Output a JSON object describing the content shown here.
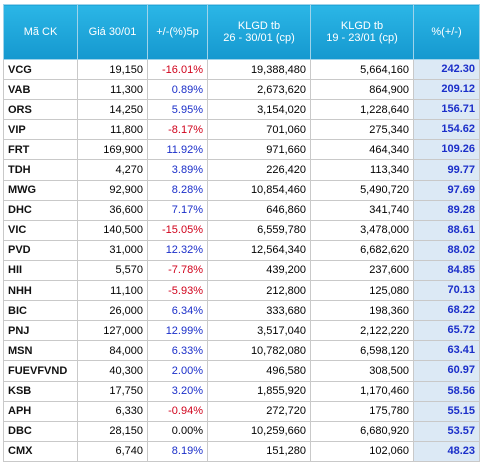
{
  "table": {
    "header": [
      "Mã CK",
      "Giá 30/01",
      "+/-(%)5p",
      "KLGD tb\n26 - 30/01 (cp)",
      "KLGD tb\n19 - 23/01 (cp)",
      "%(+/-)"
    ],
    "rows": [
      [
        "VCG",
        "19,150",
        "-16.01%",
        "19,388,480",
        "5,664,160",
        "242.30"
      ],
      [
        "VAB",
        "11,300",
        "0.89%",
        "2,673,620",
        "864,900",
        "209.12"
      ],
      [
        "ORS",
        "14,250",
        "5.95%",
        "3,154,020",
        "1,228,640",
        "156.71"
      ],
      [
        "VIP",
        "11,800",
        "-8.17%",
        "701,060",
        "275,340",
        "154.62"
      ],
      [
        "FRT",
        "169,900",
        "11.92%",
        "971,660",
        "464,340",
        "109.26"
      ],
      [
        "TDH",
        "4,270",
        "3.89%",
        "226,420",
        "113,340",
        "99.77"
      ],
      [
        "MWG",
        "92,900",
        "8.28%",
        "10,854,460",
        "5,490,720",
        "97.69"
      ],
      [
        "DHC",
        "36,600",
        "7.17%",
        "646,860",
        "341,740",
        "89.28"
      ],
      [
        "VIC",
        "140,500",
        "-15.05%",
        "6,559,780",
        "3,478,000",
        "88.61"
      ],
      [
        "PVD",
        "31,000",
        "12.32%",
        "12,564,340",
        "6,682,620",
        "88.02"
      ],
      [
        "HII",
        "5,570",
        "-7.78%",
        "439,200",
        "237,600",
        "84.85"
      ],
      [
        "NHH",
        "11,100",
        "-5.93%",
        "212,800",
        "125,080",
        "70.13"
      ],
      [
        "BIC",
        "26,000",
        "6.34%",
        "333,680",
        "198,360",
        "68.22"
      ],
      [
        "PNJ",
        "127,000",
        "12.99%",
        "3,517,040",
        "2,122,220",
        "65.72"
      ],
      [
        "MSN",
        "84,000",
        "6.33%",
        "10,782,080",
        "6,598,120",
        "63.41"
      ],
      [
        "FUEVFVND",
        "40,300",
        "2.00%",
        "496,580",
        "308,500",
        "60.97"
      ],
      [
        "KSB",
        "17,750",
        "3.20%",
        "1,855,920",
        "1,170,460",
        "58.56"
      ],
      [
        "APH",
        "6,330",
        "-0.94%",
        "272,720",
        "175,780",
        "55.15"
      ],
      [
        "DBC",
        "28,150",
        "0.00%",
        "10,259,660",
        "6,680,920",
        "53.57"
      ],
      [
        "CMX",
        "6,740",
        "8.19%",
        "151,280",
        "102,060",
        "48.23"
      ]
    ]
  }
}
